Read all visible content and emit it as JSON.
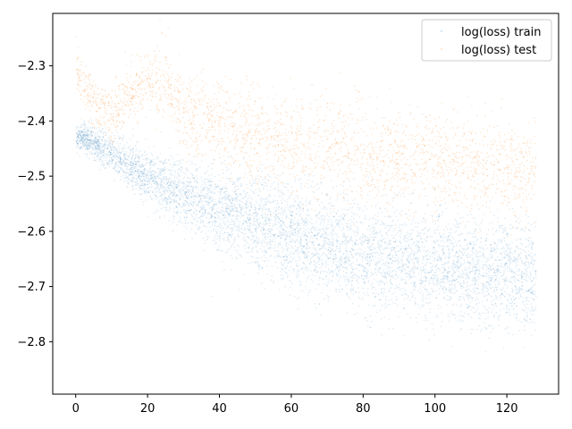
{
  "chart_data": {
    "type": "scatter",
    "title": "",
    "xlabel": "",
    "ylabel": "",
    "xlim": [
      -6.4,
      134.4
    ],
    "ylim": [
      -2.895,
      -2.205
    ],
    "xticks": [
      0,
      20,
      40,
      60,
      80,
      100,
      120
    ],
    "yticks": [
      -2.8,
      -2.7,
      -2.6,
      -2.5,
      -2.4,
      -2.3
    ],
    "ytick_labels": [
      "−2.8",
      "−2.7",
      "−2.6",
      "−2.5",
      "−2.4",
      "−2.3"
    ],
    "legend_position": "top-right",
    "grid": false,
    "series": [
      {
        "name": "log(loss) train",
        "color": "#1f77b4",
        "x": [
          0,
          2,
          5,
          10,
          15,
          20,
          30,
          40,
          50,
          60,
          70,
          80,
          90,
          100,
          110,
          120,
          128
        ],
        "y": [
          -2.43,
          -2.43,
          -2.44,
          -2.46,
          -2.48,
          -2.5,
          -2.53,
          -2.56,
          -2.585,
          -2.605,
          -2.625,
          -2.64,
          -2.65,
          -2.66,
          -2.67,
          -2.675,
          -2.68
        ]
      },
      {
        "name": "log(loss) test",
        "color": "#ff7f0e",
        "x": [
          0,
          2,
          5,
          10,
          15,
          20,
          25,
          30,
          40,
          50,
          60,
          70,
          80,
          90,
          100,
          110,
          120,
          128
        ],
        "y": [
          -2.3,
          -2.33,
          -2.37,
          -2.39,
          -2.35,
          -2.33,
          -2.32,
          -2.4,
          -2.41,
          -2.43,
          -2.44,
          -2.45,
          -2.46,
          -2.47,
          -2.47,
          -2.48,
          -2.49,
          -2.49
        ]
      }
    ]
  }
}
